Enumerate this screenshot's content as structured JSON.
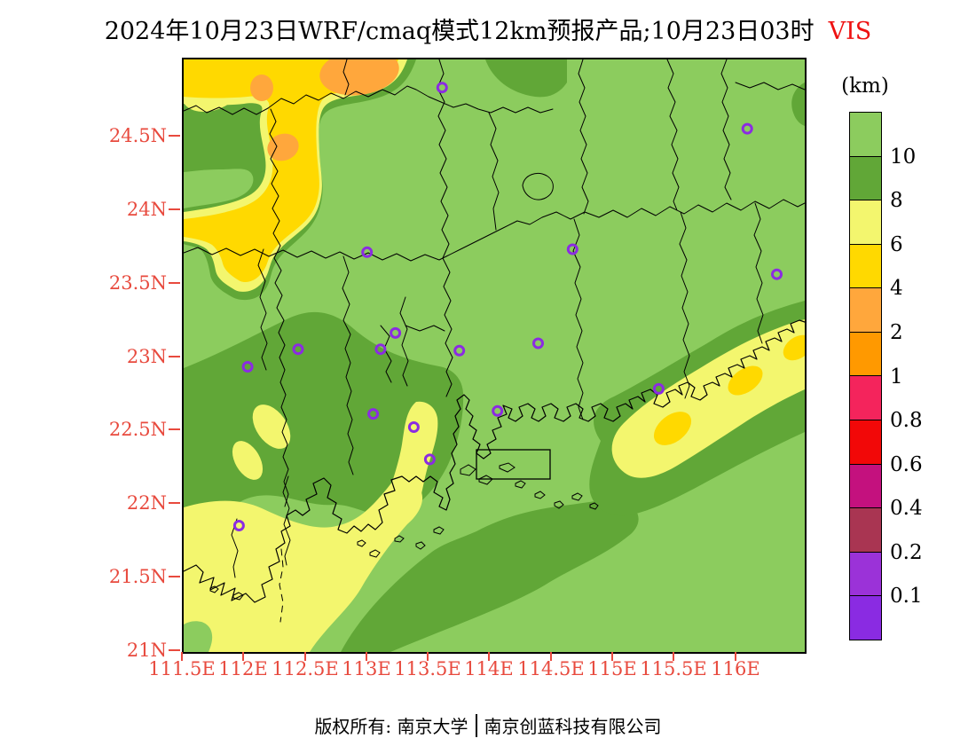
{
  "title": {
    "main": "2024年10月23日WRF/cmaq模式12km预报产品;10月23日03时",
    "variable": "VIS"
  },
  "colors": {
    "title_variable_red": "#ee1111",
    "axis_label_red": "#e84a3e"
  },
  "colorbar": {
    "unit": "(km)",
    "labels": [
      "10",
      "8",
      "6",
      "4",
      "2",
      "1",
      "0.8",
      "0.6",
      "0.4",
      "0.2",
      "0.1"
    ],
    "colors": [
      "#8ccc5e",
      "#61a737",
      "#f3f66e",
      "#ffd900",
      "#ffa73c",
      "#ff9900",
      "#f4245c",
      "#f20808",
      "#c4117e",
      "#a93552",
      "#9b32d8",
      "#8a2be2"
    ]
  },
  "axes": {
    "y_labels": [
      "24.5N",
      "24N",
      "23.5N",
      "23N",
      "22.5N",
      "22N",
      "21.5N",
      "21N"
    ],
    "x_labels": [
      "111.5E",
      "112E",
      "112.5E",
      "113E",
      "113.5E",
      "114E",
      "114.5E",
      "115E",
      "115.5E",
      "116E"
    ]
  },
  "footer": {
    "owner": "版权所有: 南京大学",
    "company": "南京创蓝科技有限公司"
  },
  "stations": {
    "marker_color": "#8b2be2",
    "points": [
      {
        "lon": 113.6,
        "lat": 24.84
      },
      {
        "lon": 116.08,
        "lat": 24.56
      },
      {
        "lon": 114.66,
        "lat": 23.74
      },
      {
        "lon": 116.32,
        "lat": 23.57
      },
      {
        "lon": 112.99,
        "lat": 23.72
      },
      {
        "lon": 113.22,
        "lat": 23.17
      },
      {
        "lon": 113.1,
        "lat": 23.06
      },
      {
        "lon": 112.43,
        "lat": 23.06
      },
      {
        "lon": 112.02,
        "lat": 22.94
      },
      {
        "lon": 113.74,
        "lat": 23.05
      },
      {
        "lon": 114.38,
        "lat": 23.1
      },
      {
        "lon": 113.04,
        "lat": 22.62
      },
      {
        "lon": 113.37,
        "lat": 22.53
      },
      {
        "lon": 114.05,
        "lat": 22.64
      },
      {
        "lon": 115.36,
        "lat": 22.79
      },
      {
        "lon": 113.5,
        "lat": 22.31
      },
      {
        "lon": 111.95,
        "lat": 21.86
      }
    ]
  },
  "chart_data": {
    "type": "heatmap",
    "title": "2024年10月23日WRF/cmaq模式12km预报产品;10月23日03时 VIS",
    "variable": "VIS (visibility)",
    "unit": "km",
    "lon_range": [
      111.5,
      116.55
    ],
    "lat_range": [
      21.0,
      25.03
    ],
    "x_tick_labels": [
      "111.5E",
      "112E",
      "112.5E",
      "113E",
      "113.5E",
      "114E",
      "114.5E",
      "115E",
      "115.5E",
      "116E"
    ],
    "y_tick_labels": [
      "21N",
      "21.5N",
      "22N",
      "22.5N",
      "23N",
      "23.5N",
      "24N",
      "24.5N"
    ],
    "contour_levels_km": [
      0.1,
      0.2,
      0.4,
      0.6,
      0.8,
      1,
      2,
      4,
      6,
      8,
      10
    ],
    "legend_position": "right",
    "regions": [
      {
        "visibility_km": ">10",
        "description": "Dominant light-green background over most of the land and all offshore waters"
      },
      {
        "visibility_km": "8-10",
        "description": "Dark-green rim around the northwest minimum; broad belt across central-western Guangdong near 22-23N; bands flanking the southeast coastal str ip (114.5-116.5E, 22.3-23.3N); band reaching the bottom edge near 112.8-113.2E; small slivers at top center (113.9-114.6E) and the right edge near 24.3N"
      },
      {
        "visibility_km": "6-8",
        "description": "Pale-yellow: large southwest area (111.5-113.5E, 21-22.5N), elongated patches inside the central belt near 112-113E 22.3-22.7N, a narrow N-S finger near 113.2-113.6E 22.2-22.8N, and a NE-SW coastal strip from ~115E 22.5N to the right edge at ~23.2N; also fringes of the northwest minimum"
      },
      {
        "visibility_km": "4-6",
        "description": "Yellow: northwest corner complex (111.5-113.3E, north of 24.3N) with a tongue extending south, plus small cores inside the southeast coastal strip near 115.4E/22.5N, 116E/22.8N and at the right edge ~23N"
      },
      {
        "visibility_km": "2-4",
        "description": "Small orange cores embedded in the northwest yellow complex near 112-112.9E, 24.4-25N"
      }
    ],
    "station_markers": "17 purple open circles at city locations (see stations.points)"
  }
}
